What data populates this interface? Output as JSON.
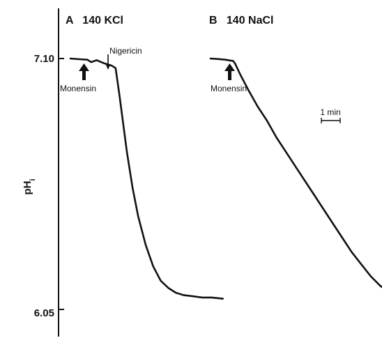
{
  "chart_data": {
    "type": "line",
    "ylabel": "pH",
    "ylabel_sub": "i",
    "ylim": [
      6.05,
      7.1
    ],
    "yticks": [
      {
        "label": "7.10",
        "value": 7.1
      },
      {
        "label": "6.05",
        "value": 6.05
      }
    ],
    "x_unit": "min",
    "scale_bar": {
      "label": "1 min",
      "minutes": 1
    },
    "grid": false,
    "panels": [
      {
        "title": "A   140 KCl",
        "series": [
          {
            "x": [
              0,
              0.5,
              0.9,
              1.1,
              1.4,
              1.8,
              2.2,
              2.4,
              2.42,
              2.6,
              2.8,
              3.0,
              3.3,
              3.6,
              4.0,
              4.4,
              4.8,
              5.2,
              5.6,
              6.0,
              6.5,
              7.0,
              7.5,
              8.1
            ],
            "y": [
              7.1,
              7.097,
              7.095,
              7.085,
              7.093,
              7.08,
              7.07,
              7.06,
              7.05,
              6.95,
              6.83,
              6.71,
              6.56,
              6.44,
              6.32,
              6.23,
              6.17,
              6.14,
              6.12,
              6.11,
              6.105,
              6.1,
              6.1,
              6.095
            ]
          }
        ],
        "annotations": [
          {
            "text": "Monensin",
            "x": 1.15,
            "marker": "thick-arrow"
          },
          {
            "text": "Nigericin",
            "x": 2.3,
            "marker": "thin-arrow"
          }
        ]
      },
      {
        "title": "B   140 NaCl",
        "series": [
          {
            "x": [
              0,
              0.4,
              0.8,
              1.0,
              1.2,
              1.3,
              1.6,
              2.0,
              2.5,
              3.0,
              3.5,
              4.0,
              4.5,
              5.0,
              5.5,
              6.0,
              6.5,
              7.0,
              7.5,
              8.0,
              8.5,
              9.0,
              9.5,
              10.0,
              10.5,
              11.0,
              11.5,
              12.0,
              12.5,
              13.0
            ],
            "y": [
              7.1,
              7.098,
              7.095,
              7.092,
              7.09,
              7.08,
              7.03,
              6.97,
              6.9,
              6.84,
              6.77,
              6.71,
              6.65,
              6.59,
              6.53,
              6.47,
              6.41,
              6.35,
              6.29,
              6.24,
              6.19,
              6.15,
              6.12,
              6.1,
              6.085,
              6.075,
              6.07,
              6.065,
              6.06,
              6.06
            ]
          }
        ],
        "annotations": [
          {
            "text": "Monensin",
            "x": 1.2,
            "marker": "thick-arrow"
          }
        ]
      }
    ]
  }
}
